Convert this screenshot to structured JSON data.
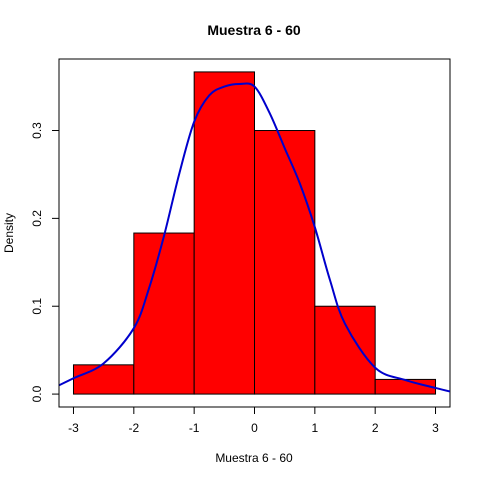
{
  "chart_data": {
    "type": "bar",
    "title": "Muestra 6 - 60",
    "xlabel": "Muestra 6 - 60",
    "ylabel": "Density",
    "bins": [
      {
        "x0": -3,
        "x1": -2,
        "density": 0.0333
      },
      {
        "x0": -2,
        "x1": -1,
        "density": 0.1833
      },
      {
        "x0": -1,
        "x1": 0,
        "density": 0.3667
      },
      {
        "x0": 0,
        "x1": 1,
        "density": 0.3
      },
      {
        "x0": 1,
        "x1": 2,
        "density": 0.1
      },
      {
        "x0": 2,
        "x1": 3,
        "density": 0.0167
      }
    ],
    "bar_color": "#ff0000",
    "density_curve": {
      "color": "#0000cc",
      "x": [
        -3.3,
        -3.0,
        -2.5,
        -2.0,
        -1.75,
        -1.5,
        -1.25,
        -1.0,
        -0.75,
        -0.5,
        -0.25,
        0.0,
        0.25,
        0.5,
        0.75,
        1.0,
        1.25,
        1.5,
        2.0,
        2.5,
        3.0,
        3.3
      ],
      "y": [
        0.008,
        0.018,
        0.035,
        0.075,
        0.12,
        0.18,
        0.25,
        0.31,
        0.34,
        0.35,
        0.353,
        0.35,
        0.32,
        0.28,
        0.24,
        0.19,
        0.13,
        0.08,
        0.03,
        0.016,
        0.007,
        0.002
      ]
    },
    "x_ticks": [
      -3,
      -2,
      -1,
      0,
      1,
      2,
      3
    ],
    "x_tick_labels": [
      "-3",
      "-2",
      "-1",
      "0",
      "1",
      "2",
      "3"
    ],
    "y_ticks": [
      0.0,
      0.1,
      0.2,
      0.3
    ],
    "y_tick_labels": [
      "0.0",
      "0.1",
      "0.2",
      "0.3"
    ],
    "xlim": [
      -3.24,
      3.24
    ],
    "ylim": [
      -0.0147,
      0.3814
    ],
    "grid": false,
    "legend": false
  }
}
